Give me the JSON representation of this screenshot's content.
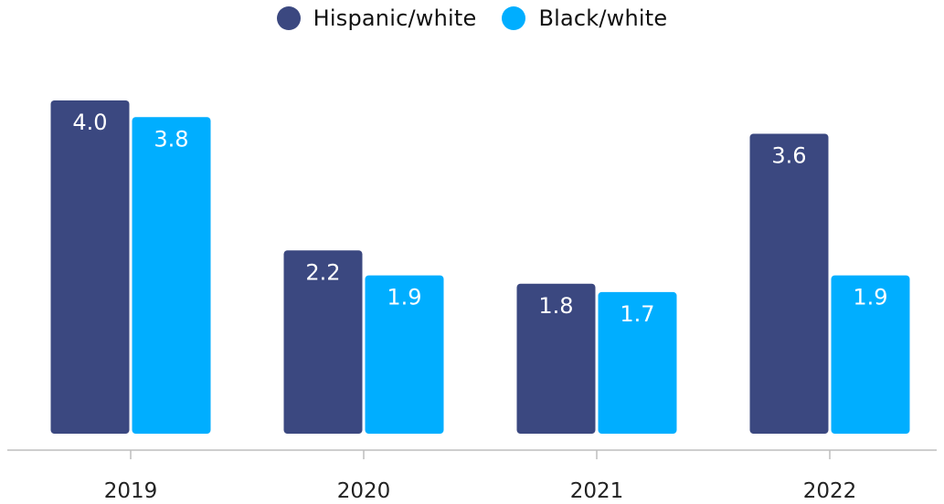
{
  "colors": {
    "hispanic": "#3b4880",
    "black": "#00aeff",
    "axis": "#bdbdbd",
    "text": "#222222"
  },
  "legend": {
    "items": [
      {
        "label": "Hispanic/white",
        "color": "#3b4880"
      },
      {
        "label": "Black/white",
        "color": "#00aeff"
      }
    ],
    "placement": "top-center"
  },
  "chart_data": {
    "type": "bar",
    "categories": [
      "2019",
      "2020",
      "2021",
      "2022"
    ],
    "series": [
      {
        "name": "Hispanic/white",
        "values": [
          4.0,
          2.2,
          1.8,
          3.6
        ],
        "labels": [
          "4.0",
          "2.2",
          "1.8",
          "3.6"
        ]
      },
      {
        "name": "Black/white",
        "values": [
          3.8,
          1.9,
          1.7,
          1.9
        ],
        "labels": [
          "3.8",
          "1.9",
          "1.7",
          "1.9"
        ]
      }
    ],
    "ylim": [
      0,
      4.0
    ],
    "grid": false,
    "data_labels": "inside-top"
  }
}
